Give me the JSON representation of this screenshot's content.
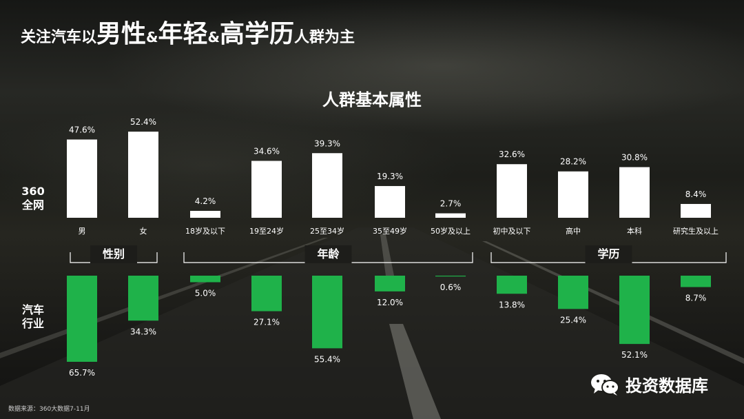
{
  "headline": {
    "part1": "关注汽车以",
    "male": "男性",
    "amp1": "&",
    "young": "年轻",
    "amp2": "&",
    "edu": "高学历",
    "part2": "人群为主"
  },
  "subtitle": "人群基本属性",
  "row_labels": {
    "top": [
      "360",
      "全网"
    ],
    "bottom": [
      "汽车",
      "行业"
    ]
  },
  "source": "数据来源：360大数据7-11月",
  "watermark": "投资数据库",
  "icon": "wechat-icon",
  "colors": {
    "top_bar": "#ffffff",
    "bottom_bar": "#1fb24a",
    "text": "#ffffff"
  },
  "chart_data": {
    "type": "bar",
    "groups": [
      {
        "name": "性别",
        "categories": [
          "男",
          "女"
        ]
      },
      {
        "name": "年龄",
        "categories": [
          "18岁及以下",
          "19至24岁",
          "25至34岁",
          "35至49岁",
          "50岁及以上"
        ]
      },
      {
        "name": "学历",
        "categories": [
          "初中及以下",
          "高中",
          "本科",
          "研究生及以上"
        ]
      }
    ],
    "categories": [
      "男",
      "女",
      "18岁及以下",
      "19至24岁",
      "25至34岁",
      "35至49岁",
      "50岁及以上",
      "初中及以下",
      "高中",
      "本科",
      "研究生及以上"
    ],
    "series": [
      {
        "name": "360全网",
        "values": [
          47.6,
          52.4,
          4.2,
          34.6,
          39.3,
          19.3,
          2.7,
          32.6,
          28.2,
          30.8,
          8.4
        ],
        "labels": [
          "47.6%",
          "52.4%",
          "4.2%",
          "34.6%",
          "39.3%",
          "19.3%",
          "2.7%",
          "32.6%",
          "28.2%",
          "30.8%",
          "8.4%"
        ]
      },
      {
        "name": "汽车行业",
        "values": [
          65.7,
          34.3,
          5.0,
          27.1,
          55.4,
          12.0,
          0.6,
          13.8,
          25.4,
          52.1,
          8.7
        ],
        "labels": [
          "65.7%",
          "34.3%",
          "5.0%",
          "27.1%",
          "55.4%",
          "12.0%",
          "0.6%",
          "13.8%",
          "25.4%",
          "52.1%",
          "8.7%"
        ]
      }
    ],
    "unit": "%"
  }
}
